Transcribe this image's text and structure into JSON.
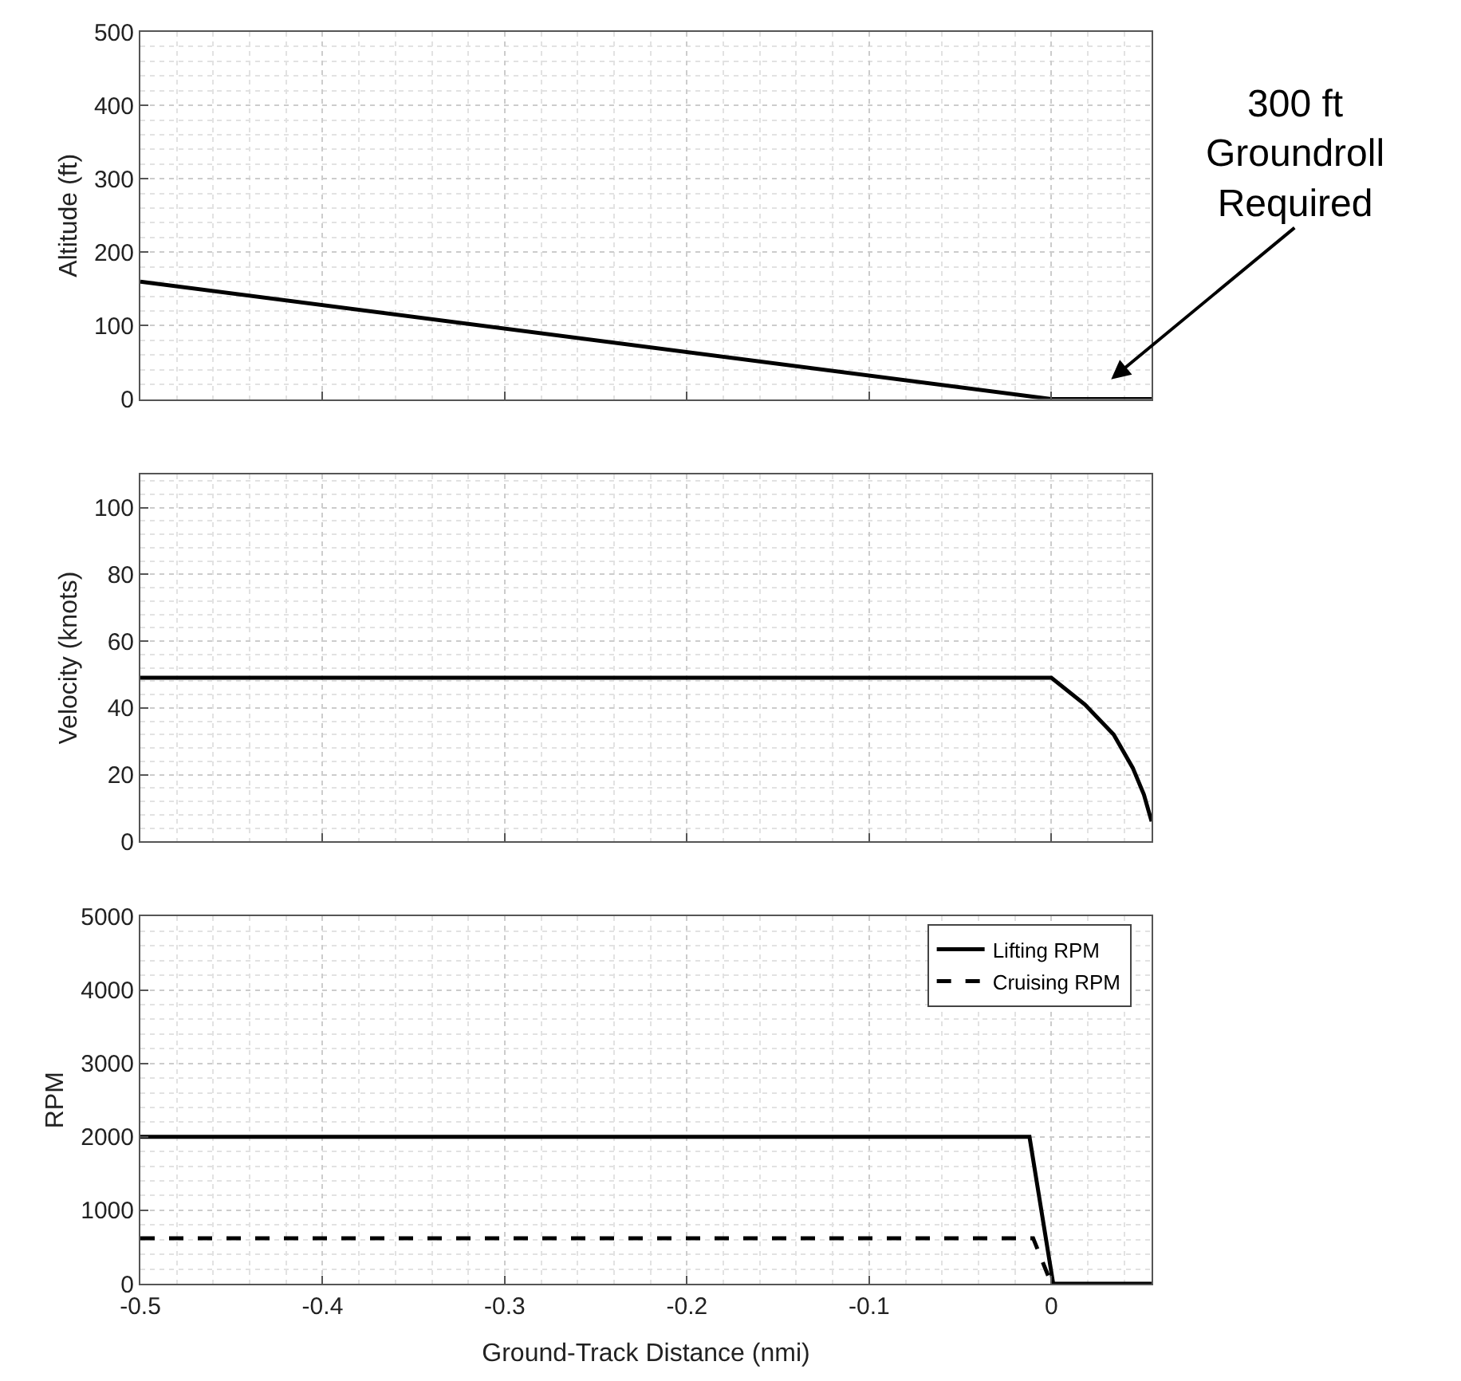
{
  "chart_data": [
    {
      "type": "line",
      "ylabel": "Altitude (ft)",
      "x": [
        -0.5,
        0,
        0.055
      ],
      "xlim": [
        -0.5,
        0.055
      ],
      "xticks": [
        -0.5,
        -0.4,
        -0.3,
        -0.2,
        -0.1,
        0
      ],
      "ylim": [
        0,
        500
      ],
      "yticks": [
        0,
        100,
        200,
        300,
        400,
        500
      ],
      "tick_labels": "y",
      "grid": true,
      "series": [
        {
          "color": "#000000",
          "values": [
            160,
            0,
            0
          ]
        }
      ],
      "annotations": [
        "300 ft\nGroundroll\nRequired"
      ]
    },
    {
      "type": "line",
      "ylabel": "Velocity (knots)",
      "x": [
        -0.5,
        0,
        0.0184,
        0.0342,
        0.0447,
        0.0508,
        0.055
      ],
      "xlim": [
        -0.5,
        0.055
      ],
      "xticks": [
        -0.5,
        -0.4,
        -0.3,
        -0.2,
        -0.1,
        0
      ],
      "ylim": [
        0,
        110
      ],
      "yticks": [
        0,
        20,
        40,
        60,
        80,
        100
      ],
      "tick_labels": "y",
      "grid": true,
      "series": [
        {
          "color": "#000000",
          "values": [
            49,
            49,
            41,
            32,
            22,
            14,
            6
          ]
        }
      ]
    },
    {
      "type": "line",
      "ylabel": "RPM",
      "xlabel": "Ground-Track Distance (nmi)",
      "xlim": [
        -0.5,
        0.055
      ],
      "xticks": [
        -0.5,
        -0.4,
        -0.3,
        -0.2,
        -0.1,
        0
      ],
      "ylim": [
        0,
        5000
      ],
      "yticks": [
        0,
        1000,
        2000,
        3000,
        4000,
        5000
      ],
      "grid": true,
      "legend": "top right",
      "series": [
        {
          "name": "Lifting RPM",
          "color": "#000000",
          "line_style": "solid",
          "x": [
            -0.5,
            -0.012,
            0.001,
            0.055
          ],
          "values": [
            2000,
            2000,
            0,
            0
          ]
        },
        {
          "name": "Cruising RPM",
          "color": "#000000",
          "line_style": "dashed",
          "x": [
            -0.5,
            -0.01,
            0
          ],
          "values": [
            620,
            620,
            0
          ]
        }
      ]
    }
  ]
}
